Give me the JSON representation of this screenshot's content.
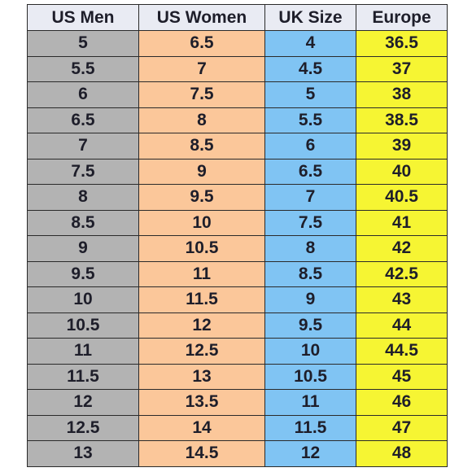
{
  "table": {
    "header": [
      "US Men",
      "US Women",
      "UK Size",
      "Europe"
    ],
    "rows": [
      [
        "5",
        "6.5",
        "4",
        "36.5"
      ],
      [
        "5.5",
        "7",
        "4.5",
        "37"
      ],
      [
        "6",
        "7.5",
        "5",
        "38"
      ],
      [
        "6.5",
        "8",
        "5.5",
        "38.5"
      ],
      [
        "7",
        "8.5",
        "6",
        "39"
      ],
      [
        "7.5",
        "9",
        "6.5",
        "40"
      ],
      [
        "8",
        "9.5",
        "7",
        "40.5"
      ],
      [
        "8.5",
        "10",
        "7.5",
        "41"
      ],
      [
        "9",
        "10.5",
        "8",
        "42"
      ],
      [
        "9.5",
        "11",
        "8.5",
        "42.5"
      ],
      [
        "10",
        "11.5",
        "9",
        "43"
      ],
      [
        "10.5",
        "12",
        "9.5",
        "44"
      ],
      [
        "11",
        "12.5",
        "10",
        "44.5"
      ],
      [
        "11.5",
        "13",
        "10.5",
        "45"
      ],
      [
        "12",
        "13.5",
        "11",
        "46"
      ],
      [
        "12.5",
        "14",
        "11.5",
        "47"
      ],
      [
        "13",
        "14.5",
        "12",
        "48"
      ]
    ]
  }
}
